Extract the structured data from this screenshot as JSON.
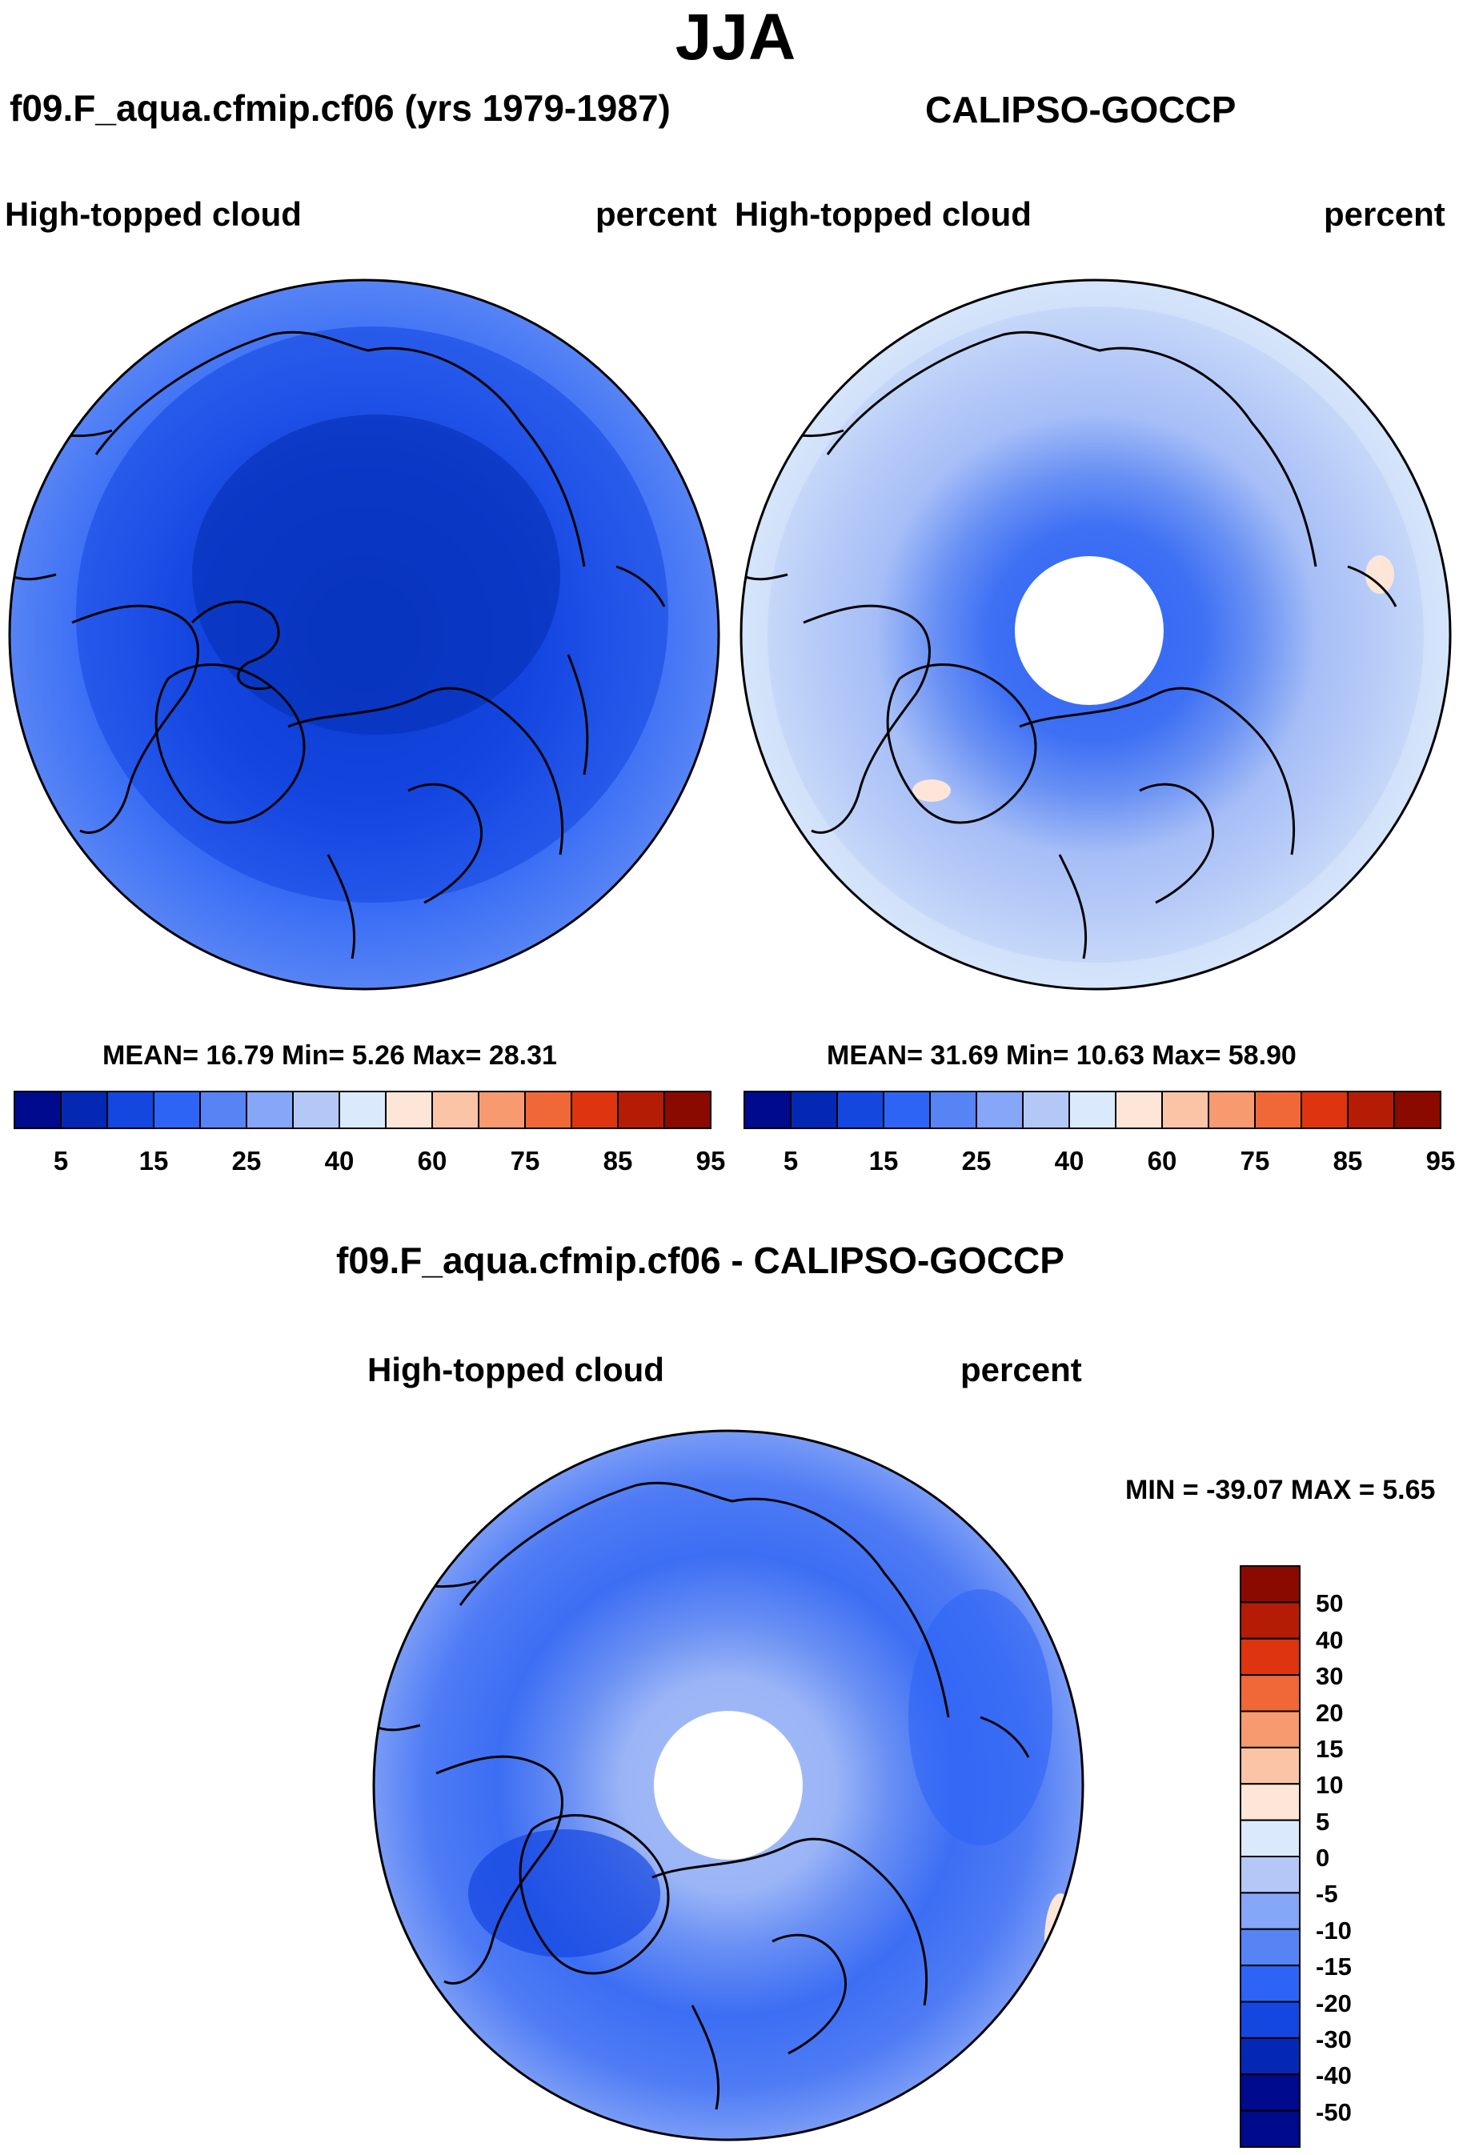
{
  "season": "JJA",
  "panels": [
    {
      "id": "model",
      "title": "f09.F_aqua.cfmip.cf06 (yrs 1979-1987)",
      "variable": "High-topped cloud",
      "units": "percent",
      "stats_text": "MEAN=  16.79  Min=   5.26  Max=  28.31",
      "mean": 16.79,
      "min": 5.26,
      "max": 28.31,
      "field": "dark-blue core near the pole (about 5-15 percent) fading outward to 15-25 percent"
    },
    {
      "id": "obs",
      "title": "CALIPSO-GOCCP",
      "variable": "High-topped cloud",
      "units": "percent",
      "stats_text": "MEAN=  31.69  Min=  10.63  Max=  58.90",
      "mean": 31.69,
      "min": 10.63,
      "max": 58.9,
      "field": "20-40 percent over most of the cap, lighter 35-60 percent at lower latitudes, white no-data disk at the pole"
    },
    {
      "id": "diff",
      "title": "f09.F_aqua.cfmip.cf06 - CALIPSO-GOCCP",
      "variable": "High-topped cloud",
      "units": "percent",
      "stats_text": "MIN = -39.07 MAX =    5.65",
      "min": -39.07,
      "max": 5.65,
      "field": "mostly -5 to -30, strongest negatives away from the pole, white no-data disk at the pole"
    }
  ],
  "colorbar_abs": {
    "levels": [
      5,
      10,
      15,
      20,
      25,
      30,
      40,
      50,
      60,
      70,
      75,
      80,
      85,
      90,
      95
    ],
    "tick_labels": [
      "5",
      "15",
      "25",
      "40",
      "60",
      "75",
      "85",
      "95"
    ],
    "colors": [
      "#000a8c",
      "#0428b4",
      "#1446e0",
      "#2e64f5",
      "#5784f5",
      "#86a6f7",
      "#b4c8f8",
      "#daeafc",
      "#fde6d8",
      "#fbc4a6",
      "#f79a70",
      "#f06838",
      "#df3410",
      "#b51c05",
      "#8a0a00"
    ]
  },
  "colorbar_diff": {
    "levels": [
      -50,
      -40,
      -30,
      -20,
      -15,
      -10,
      -5,
      0,
      5,
      10,
      15,
      20,
      30,
      40,
      50
    ],
    "tick_labels": [
      "50",
      "40",
      "30",
      "20",
      "15",
      "10",
      "5",
      "0",
      "-5",
      "-10",
      "-15",
      "-20",
      "-30",
      "-40",
      "-50"
    ],
    "colors": [
      "#000a8c",
      "#0428b4",
      "#1446e0",
      "#2e64f5",
      "#5784f5",
      "#86a6f7",
      "#b4c8f8",
      "#daeafc",
      "#fde6d8",
      "#fbc4a6",
      "#f79a70",
      "#f06838",
      "#df3410",
      "#b51c05",
      "#8a0a00"
    ]
  }
}
